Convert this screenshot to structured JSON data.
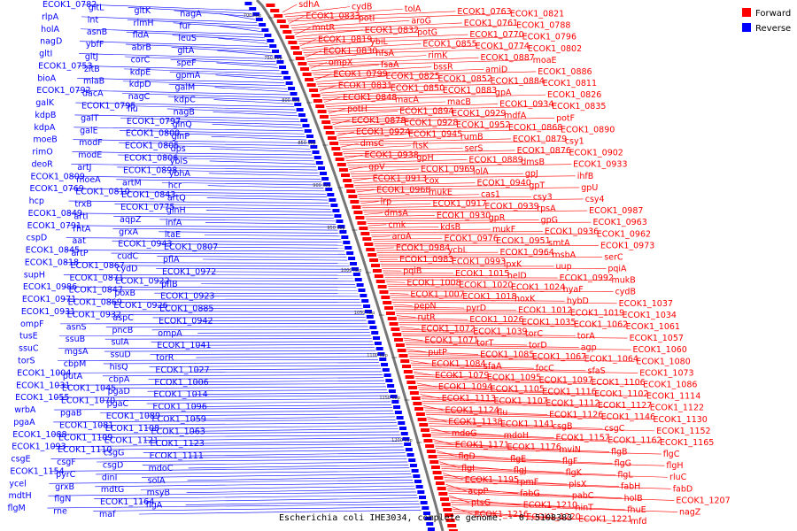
{
  "caption": "Escherichia coli IHE3034, complete genome. - 0..5108383",
  "legend": [
    {
      "label": "Forward",
      "color": "#ff0000"
    },
    {
      "label": "Reverse",
      "color": "#0000ff"
    }
  ],
  "ticks": [
    "700 kbp",
    "750 kbp",
    "800 kbp",
    "850 kbp",
    "900 kbp",
    "950 kbp",
    "1000 kbp",
    "1050 kbp",
    "1100 kbp",
    "1150 kbp",
    "1200 kbp"
  ],
  "colors": {
    "forward": "#ff0000",
    "reverse": "#0000ff",
    "backbone": "#777777"
  },
  "reverse_labels": [
    "ECOK1_0782",
    "gltL",
    "gltK",
    "nagA",
    "rlpA",
    "lnt",
    "rlmH",
    "fur",
    "holA",
    "asnB",
    "fldA",
    "leuS",
    "nagD",
    "ybfF",
    "abrB",
    "gltA",
    "gltI",
    "gltJ",
    "corC",
    "speF",
    "ECOK1_0753",
    "zitB",
    "kdpE",
    "gpmA",
    "bioA",
    "miaB",
    "kdpD",
    "galM",
    "ECOK1_0792",
    "dacA",
    "nagC",
    "kdpC",
    "galK",
    "ECOK1_0795",
    "fiu",
    "nagB",
    "kdpB",
    "galT",
    "ECOK1_0797",
    "glnQ",
    "kdpA",
    "galE",
    "ECOK1_0800",
    "glnP",
    "moeB",
    "modF",
    "ECOK1_0805",
    "dps",
    "rimO",
    "modE",
    "ECOK1_0806",
    "ybiS",
    "deoR",
    "artJ",
    "ECOK1_0898",
    "ybhA",
    "ECOK1_0809",
    "moeA",
    "artM",
    "hcr",
    "ECOK1_0769",
    "ECOK1_0810",
    "ECOK1_0843",
    "artQ",
    "hcp",
    "trxB",
    "ECOK1_0775",
    "glnH",
    "ECOK1_0849",
    "artI",
    "aqpZ",
    "infA",
    "ECOK1_0791",
    "rhtA",
    "grxA",
    "ltaE",
    "cspD",
    "aat",
    "ECOK1_0943",
    "ECOK1_0807",
    "ECOK1_0845",
    "artP",
    "cudC",
    "pflA",
    "ECOK1_0818",
    "ECOK1_0867",
    "cydD",
    "ECOK1_0972",
    "supH",
    "ECOK1_0871",
    "ECOK1_0922",
    "pflB",
    "ECOK1_0986",
    "ECOK1_0847",
    "poxB",
    "ECOK1_0923",
    "ECOK1_0971",
    "ECOK1_0869",
    "ECOK1_0926",
    "ECOK1_0885",
    "ECOK1_0931",
    "ECOK1_0932",
    "aspC",
    "ECOK1_0942",
    "ompF",
    "asnS",
    "pncB",
    "ompA",
    "tusE",
    "ssuB",
    "sulA",
    "ECOK1_1041",
    "ssuC",
    "mgsA",
    "ssuD",
    "torR",
    "torS",
    "cbpM",
    "hisQ",
    "ECOK1_1027",
    "ECOK1_1004",
    "putA",
    "cbpA",
    "ECOK1_1006",
    "ECOK1_1031",
    "ECOK1_1045",
    "pgaD",
    "ECOK1_1014",
    "ECOK1_1055",
    "ECOK1_1070",
    "pgaC",
    "ECOK1_1096",
    "wrbA",
    "pgaB",
    "ECOK1_1089",
    "ECOK1_1059",
    "pgaA",
    "ECOK1_1081",
    "ECOK1_1108",
    "ECOK1_1063",
    "ECOK1_1088",
    "ECOK1_1109",
    "ECOK1_1121",
    "ECOK1_1123",
    "ECOK1_1093",
    "ECOK1_1110",
    "csgG",
    "ECOK1_1111",
    "csgE",
    "csgF",
    "csgD",
    "mdoC",
    "ECOK1_1154",
    "pyrC",
    "dinI",
    "solA",
    "ycel",
    "grxB",
    "mdtG",
    "msyB",
    "mdtH",
    "flgN",
    "ECOK1_1164",
    "flgA",
    "flgM",
    "rne",
    "maf"
  ],
  "forward_labels": [
    "sdhA",
    "cydB",
    "tolA",
    "ECOK1_0763",
    "ECOK1_0821",
    "ECOK1_0833",
    "potI",
    "aroG",
    "ECOK1_0761",
    "ECOK1_0788",
    "mntR",
    "ECOK1_0832",
    "potG",
    "ECOK1_0770",
    "ECOK1_0796",
    "ECOK1_0819",
    "ybiL",
    "ECOK1_0855",
    "ECOK1_0774",
    "ECOK1_0802",
    "ECOK1_0830",
    "nfsA",
    "rimK",
    "ECOK1_0887",
    "moaE",
    "ompX",
    "fsaA",
    "bssR",
    "amiD",
    "ECOK1_0886",
    "ECOK1_0799",
    "ECOK1_0825",
    "ECOK1_0852",
    "ECOK1_0884",
    "ECOK1_0811",
    "ECOK1_0831",
    "ECOK1_0850",
    "ECOK1_0883",
    "gpA",
    "ECOK1_0826",
    "ECOK1_0848",
    "macA",
    "macB",
    "ECOK1_0934",
    "ECOK1_0835",
    "potH",
    "ECOK1_0894",
    "ECOK1_0929",
    "mdfA",
    "potF",
    "ECOK1_0878",
    "ECOK1_0928",
    "ECOK1_0952",
    "ECOK1_0868",
    "ECOK1_0890",
    "ECOK1_0924",
    "ECOK1_0945",
    "rumB",
    "ECOK1_0879",
    "csy1",
    "dmsC",
    "ftsK",
    "serS",
    "ECOK1_0876",
    "ECOK1_0902",
    "ECOK1_0938",
    "gpH",
    "ECOK1_0889",
    "dmsB",
    "ECOK1_0933",
    "gpV",
    "ECOK1_0969",
    "lolA",
    "gpJ",
    "ihfB",
    "ECOK1_0913",
    "cox",
    "ECOK1_0940",
    "gpT",
    "gpU",
    "ECOK1_0968",
    "mukE",
    "cas1",
    "csy3",
    "csy4",
    "lrp",
    "ECOK1_0917",
    "ECOK1_0939",
    "rpsA",
    "ECOK1_0987",
    "dmsA",
    "ECOK1_0930",
    "gpR",
    "gpG",
    "ECOK1_0963",
    "cmk",
    "kdsB",
    "mukF",
    "ECOK1_0936",
    "ECOK1_0962",
    "aroA",
    "ECOK1_0976",
    "ECOK1_0951",
    "smtA",
    "ECOK1_0973",
    "ECOK1_0984",
    "ycbL",
    "ECOK1_0964",
    "msbA",
    "serC",
    "ECOK1_0983",
    "ECOK1_0993",
    "lpxK",
    "uup",
    "pqiA",
    "pqiB",
    "ECOK1_1015",
    "helD",
    "ECOK1_0992",
    "mukB",
    "ECOK1_1008",
    "ECOK1_1020",
    "ECOK1_1024",
    "hyaF",
    "cydB",
    "ECOK1_1007",
    "ECOK1_1018",
    "hoxK",
    "hybD",
    "ECOK1_1037",
    "pepN",
    "pyrD",
    "ECOK1_1012",
    "ECOK1_1019",
    "ECOK1_1034",
    "rutR",
    "ECOK1_1026",
    "ECOK1_1035",
    "ECOK1_1062",
    "ECOK1_1061",
    "ECOK1_1072",
    "ECOK1_1039",
    "torC",
    "torA",
    "ECOK1_1057",
    "ECOK1_1071",
    "torT",
    "torD",
    "agp",
    "ECOK1_1060",
    "putP",
    "ECOK1_1085",
    "ECOK1_1067",
    "ECOK1_1064",
    "ECOK1_1080",
    "ECOK1_1084",
    "sfaA",
    "focC",
    "sfaS",
    "ECOK1_1073",
    "ECOK1_1079",
    "ECOK1_1095",
    "ECOK1_1097",
    "ECOK1_1106",
    "ECOK1_1086",
    "ECOK1_1094",
    "ECOK1_1105",
    "ECOK1_1116",
    "ECOK1_1102",
    "ECOK1_1114",
    "ECOK1_1113",
    "ECOK1_1107",
    "ECOK1_1112",
    "ECOK1_1127",
    "ECOK1_1122",
    "ECOK1_1124",
    "flu",
    "ECOK1_1126",
    "ECOK1_1146",
    "ECOK1_1130",
    "ECOK1_1138",
    "ECOK1_1141",
    "csgB",
    "csgC",
    "ECOK1_1152",
    "mdoG",
    "mdoH",
    "ECOK1_1157",
    "ECOK1_1162",
    "ECOK1_1165",
    "ECOK1_1171",
    "ECOK1_1176",
    "mviN",
    "flgB",
    "flgC",
    "flgD",
    "flgE",
    "flgF",
    "flgG",
    "flgH",
    "flgI",
    "flgJ",
    "flgK",
    "flgL",
    "rluC",
    "ECOK1_1195",
    "rpmF",
    "plsX",
    "fabH",
    "fabD",
    "acpP",
    "fabG",
    "pabC",
    "holB",
    "ECOK1_1207",
    "ptsG",
    "ECOK1_1210",
    "hinT",
    "fhuE",
    "nagZ",
    "ECOK1_1216",
    "ECOK1_1220",
    "ECOK1_1221",
    "mfd"
  ]
}
